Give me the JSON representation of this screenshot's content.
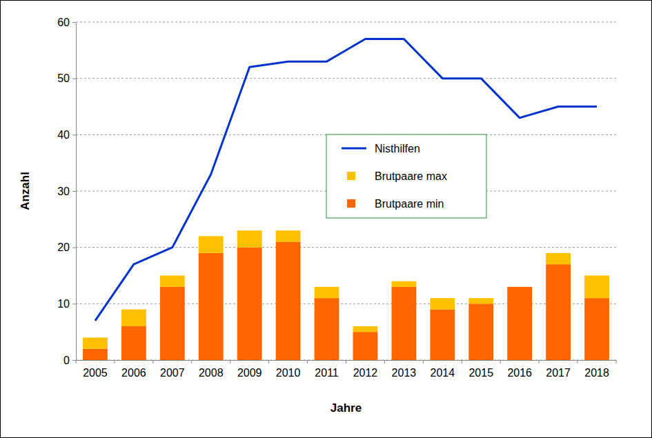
{
  "chart_data": {
    "type": "bar",
    "stacked": true,
    "grid": true,
    "legend": "center",
    "x_label": "Jahre",
    "y_label": "Anzahl",
    "categories": [
      "2005",
      "2006",
      "2007",
      "2008",
      "2009",
      "2010",
      "2011",
      "2012",
      "2013",
      "2014",
      "2015",
      "2016",
      "2017",
      "2018"
    ],
    "ylim": [
      0,
      60
    ],
    "yticks": [
      0,
      10,
      20,
      30,
      40,
      50,
      60
    ],
    "series": [
      {
        "name": "Brutpaare min",
        "type": "bar",
        "color": "#ff6600",
        "values": [
          2,
          6,
          13,
          19,
          20,
          21,
          11,
          5,
          13,
          9,
          10,
          13,
          17,
          11
        ]
      },
      {
        "name": "Brutpaare max",
        "type": "bar",
        "color": "#ffc000",
        "values": [
          2,
          3,
          2,
          3,
          3,
          2,
          2,
          1,
          1,
          2,
          1,
          0,
          2,
          4
        ]
      },
      {
        "name": "Nisthilfen",
        "type": "line",
        "color": "#0033cc",
        "values": [
          7,
          17,
          20,
          33,
          52,
          53,
          53,
          57,
          57,
          50,
          50,
          43,
          45,
          45
        ]
      }
    ]
  }
}
